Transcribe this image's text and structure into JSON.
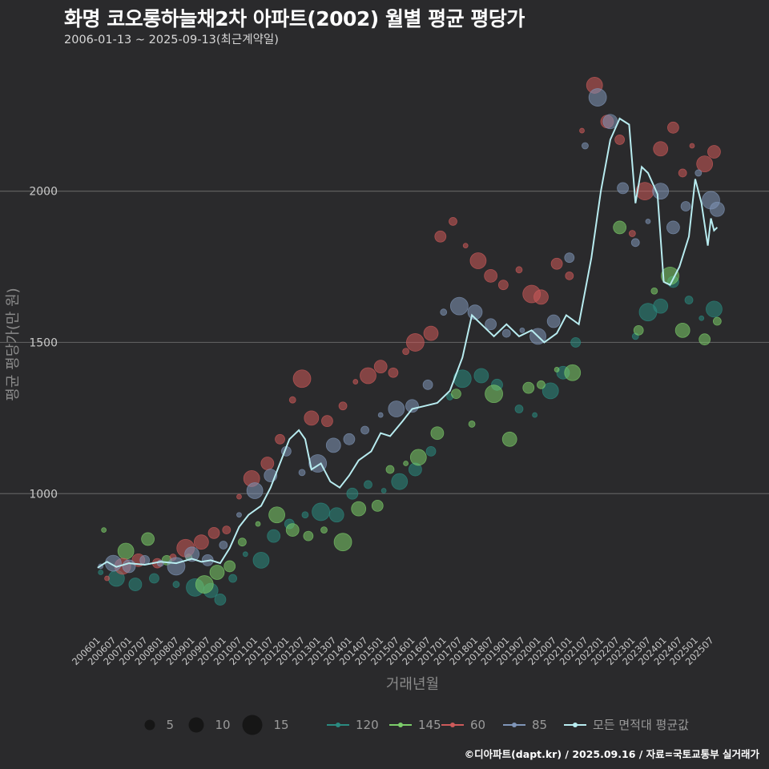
{
  "header": {
    "title": "화명 코오롱하늘채2차 아파트(2002) 월별 평균 평당가",
    "subtitle": "2006-01-13 ~ 2025-09-13(최근계약일)"
  },
  "caption": "©디아파트(dapt.kr) / 2025.09.16 / 자료=국토교통부 실거래가",
  "chart_data": {
    "type": "scatter",
    "xlabel": "거래년월",
    "ylabel": "평균 평당가(만 원)",
    "ylim": [
      540,
      2420
    ],
    "y_ticks": [
      1000,
      1500,
      2000
    ],
    "x_ticks": [
      "200601",
      "200607",
      "200701",
      "200707",
      "200801",
      "200807",
      "200901",
      "200907",
      "201001",
      "201007",
      "201101",
      "201107",
      "201201",
      "201207",
      "201301",
      "201307",
      "201401",
      "201407",
      "201501",
      "201507",
      "201601",
      "201607",
      "201701",
      "201707",
      "201801",
      "201807",
      "201901",
      "201907",
      "202001",
      "202007",
      "202101",
      "202107",
      "202201",
      "202207",
      "202301",
      "202307",
      "202401",
      "202407",
      "202501",
      "202507"
    ],
    "grid": "horizontal",
    "legend_placement": "bottom",
    "size_legend": {
      "values": [
        5,
        10,
        15
      ]
    },
    "series": [
      {
        "name": "120",
        "color": "#2a8a80",
        "points": [
          [
            2006.1,
            740
          ],
          [
            2006.6,
            720
          ],
          [
            2007.2,
            700
          ],
          [
            2007.8,
            720
          ],
          [
            2008.5,
            700
          ],
          [
            2009.1,
            690
          ],
          [
            2009.6,
            680
          ],
          [
            2009.9,
            650
          ],
          [
            2010.3,
            720
          ],
          [
            2010.7,
            800
          ],
          [
            2011.2,
            780
          ],
          [
            2011.6,
            860
          ],
          [
            2012.1,
            900
          ],
          [
            2012.6,
            930
          ],
          [
            2013.1,
            940
          ],
          [
            2013.6,
            930
          ],
          [
            2014.1,
            1000
          ],
          [
            2014.6,
            1030
          ],
          [
            2015.1,
            1010
          ],
          [
            2015.6,
            1040
          ],
          [
            2016.1,
            1080
          ],
          [
            2016.6,
            1140
          ],
          [
            2017.2,
            1320
          ],
          [
            2017.6,
            1380
          ],
          [
            2018.2,
            1390
          ],
          [
            2018.7,
            1360
          ],
          [
            2019.4,
            1280
          ],
          [
            2019.9,
            1260
          ],
          [
            2020.4,
            1340
          ],
          [
            2020.8,
            1400
          ],
          [
            2021.2,
            1500
          ],
          [
            2023.1,
            1520
          ],
          [
            2023.5,
            1600
          ],
          [
            2023.9,
            1620
          ],
          [
            2024.3,
            1700
          ],
          [
            2024.8,
            1640
          ],
          [
            2025.2,
            1580
          ],
          [
            2025.6,
            1610
          ]
        ]
      },
      {
        "name": "145",
        "color": "#7ccd6a",
        "points": [
          [
            2006.2,
            880
          ],
          [
            2006.9,
            810
          ],
          [
            2007.6,
            850
          ],
          [
            2008.2,
            780
          ],
          [
            2008.9,
            790
          ],
          [
            2009.4,
            700
          ],
          [
            2009.8,
            740
          ],
          [
            2010.2,
            760
          ],
          [
            2010.6,
            840
          ],
          [
            2011.1,
            900
          ],
          [
            2011.7,
            930
          ],
          [
            2012.2,
            880
          ],
          [
            2012.7,
            860
          ],
          [
            2013.2,
            880
          ],
          [
            2013.8,
            840
          ],
          [
            2014.3,
            950
          ],
          [
            2014.9,
            960
          ],
          [
            2015.3,
            1080
          ],
          [
            2015.8,
            1100
          ],
          [
            2016.2,
            1120
          ],
          [
            2016.8,
            1200
          ],
          [
            2017.4,
            1330
          ],
          [
            2017.9,
            1230
          ],
          [
            2018.6,
            1330
          ],
          [
            2019.1,
            1180
          ],
          [
            2019.7,
            1350
          ],
          [
            2020.1,
            1360
          ],
          [
            2020.6,
            1410
          ],
          [
            2021.1,
            1400
          ],
          [
            2022.6,
            1880
          ],
          [
            2023.2,
            1540
          ],
          [
            2023.7,
            1670
          ],
          [
            2024.2,
            1720
          ],
          [
            2024.6,
            1540
          ],
          [
            2025.3,
            1510
          ],
          [
            2025.7,
            1570
          ]
        ]
      },
      {
        "name": "60",
        "color": "#cd5a5a",
        "points": [
          [
            2006.3,
            720
          ],
          [
            2006.8,
            760
          ],
          [
            2007.3,
            780
          ],
          [
            2007.9,
            770
          ],
          [
            2008.4,
            790
          ],
          [
            2008.8,
            820
          ],
          [
            2009.3,
            840
          ],
          [
            2009.7,
            870
          ],
          [
            2010.1,
            880
          ],
          [
            2010.5,
            990
          ],
          [
            2010.9,
            1050
          ],
          [
            2011.4,
            1100
          ],
          [
            2011.8,
            1180
          ],
          [
            2012.2,
            1310
          ],
          [
            2012.5,
            1380
          ],
          [
            2012.8,
            1250
          ],
          [
            2013.3,
            1240
          ],
          [
            2013.8,
            1290
          ],
          [
            2014.2,
            1370
          ],
          [
            2014.6,
            1390
          ],
          [
            2015.0,
            1420
          ],
          [
            2015.4,
            1400
          ],
          [
            2015.8,
            1470
          ],
          [
            2016.1,
            1500
          ],
          [
            2016.6,
            1530
          ],
          [
            2016.9,
            1850
          ],
          [
            2017.3,
            1900
          ],
          [
            2017.7,
            1820
          ],
          [
            2018.1,
            1770
          ],
          [
            2018.5,
            1720
          ],
          [
            2018.9,
            1690
          ],
          [
            2019.4,
            1740
          ],
          [
            2019.8,
            1660
          ],
          [
            2020.1,
            1650
          ],
          [
            2020.6,
            1760
          ],
          [
            2021.0,
            1720
          ],
          [
            2021.4,
            2200
          ],
          [
            2021.8,
            2350
          ],
          [
            2022.2,
            2230
          ],
          [
            2022.6,
            2170
          ],
          [
            2023.0,
            1860
          ],
          [
            2023.4,
            2000
          ],
          [
            2023.9,
            2140
          ],
          [
            2024.3,
            2210
          ],
          [
            2024.6,
            2060
          ],
          [
            2024.9,
            2150
          ],
          [
            2025.3,
            2090
          ],
          [
            2025.6,
            2130
          ]
        ]
      },
      {
        "name": "85",
        "color": "#7f95b8",
        "points": [
          [
            2006.1,
            760
          ],
          [
            2006.5,
            770
          ],
          [
            2007.0,
            760
          ],
          [
            2007.5,
            780
          ],
          [
            2008.0,
            770
          ],
          [
            2008.5,
            760
          ],
          [
            2009.0,
            800
          ],
          [
            2009.5,
            780
          ],
          [
            2010.0,
            830
          ],
          [
            2010.5,
            930
          ],
          [
            2011.0,
            1010
          ],
          [
            2011.5,
            1060
          ],
          [
            2012.0,
            1140
          ],
          [
            2012.5,
            1070
          ],
          [
            2013.0,
            1100
          ],
          [
            2013.5,
            1160
          ],
          [
            2014.0,
            1180
          ],
          [
            2014.5,
            1210
          ],
          [
            2015.0,
            1260
          ],
          [
            2015.5,
            1280
          ],
          [
            2016.0,
            1290
          ],
          [
            2016.5,
            1360
          ],
          [
            2017.0,
            1600
          ],
          [
            2017.5,
            1620
          ],
          [
            2018.0,
            1600
          ],
          [
            2018.5,
            1560
          ],
          [
            2019.0,
            1530
          ],
          [
            2019.5,
            1540
          ],
          [
            2020.0,
            1520
          ],
          [
            2020.5,
            1570
          ],
          [
            2021.0,
            1780
          ],
          [
            2021.5,
            2150
          ],
          [
            2021.9,
            2310
          ],
          [
            2022.3,
            2230
          ],
          [
            2022.7,
            2010
          ],
          [
            2023.1,
            1830
          ],
          [
            2023.5,
            1900
          ],
          [
            2023.9,
            2000
          ],
          [
            2024.3,
            1880
          ],
          [
            2024.7,
            1950
          ],
          [
            2025.1,
            2060
          ],
          [
            2025.5,
            1970
          ],
          [
            2025.7,
            1940
          ]
        ]
      }
    ],
    "average_series": {
      "name": "모든 면적대 평균값",
      "color": "#b8ecf0",
      "points": [
        [
          2006.0,
          755
        ],
        [
          2006.3,
          775
        ],
        [
          2006.6,
          758
        ],
        [
          2007.0,
          770
        ],
        [
          2007.5,
          765
        ],
        [
          2008.0,
          775
        ],
        [
          2008.5,
          770
        ],
        [
          2009.0,
          785
        ],
        [
          2009.3,
          775
        ],
        [
          2009.6,
          780
        ],
        [
          2009.9,
          770
        ],
        [
          2010.2,
          820
        ],
        [
          2010.5,
          890
        ],
        [
          2010.8,
          930
        ],
        [
          2011.2,
          960
        ],
        [
          2011.5,
          1020
        ],
        [
          2011.8,
          1100
        ],
        [
          2012.1,
          1180
        ],
        [
          2012.4,
          1210
        ],
        [
          2012.6,
          1180
        ],
        [
          2012.8,
          1080
        ],
        [
          2013.1,
          1100
        ],
        [
          2013.4,
          1040
        ],
        [
          2013.7,
          1020
        ],
        [
          2014.0,
          1060
        ],
        [
          2014.3,
          1110
        ],
        [
          2014.7,
          1140
        ],
        [
          2015.0,
          1200
        ],
        [
          2015.3,
          1190
        ],
        [
          2015.7,
          1240
        ],
        [
          2016.0,
          1280
        ],
        [
          2016.4,
          1290
        ],
        [
          2016.8,
          1300
        ],
        [
          2017.2,
          1340
        ],
        [
          2017.6,
          1450
        ],
        [
          2017.9,
          1590
        ],
        [
          2018.2,
          1560
        ],
        [
          2018.6,
          1520
        ],
        [
          2019.0,
          1560
        ],
        [
          2019.4,
          1520
        ],
        [
          2019.8,
          1540
        ],
        [
          2020.2,
          1500
        ],
        [
          2020.6,
          1530
        ],
        [
          2020.9,
          1590
        ],
        [
          2021.3,
          1560
        ],
        [
          2021.7,
          1780
        ],
        [
          2022.0,
          2000
        ],
        [
          2022.3,
          2170
        ],
        [
          2022.6,
          2240
        ],
        [
          2022.9,
          2220
        ],
        [
          2023.1,
          1960
        ],
        [
          2023.3,
          2080
        ],
        [
          2023.5,
          2060
        ],
        [
          2023.8,
          1990
        ],
        [
          2024.0,
          1700
        ],
        [
          2024.2,
          1690
        ],
        [
          2024.5,
          1750
        ],
        [
          2024.8,
          1850
        ],
        [
          2025.0,
          2040
        ],
        [
          2025.2,
          1960
        ],
        [
          2025.4,
          1820
        ],
        [
          2025.5,
          1910
        ],
        [
          2025.6,
          1870
        ],
        [
          2025.7,
          1880
        ]
      ]
    }
  }
}
